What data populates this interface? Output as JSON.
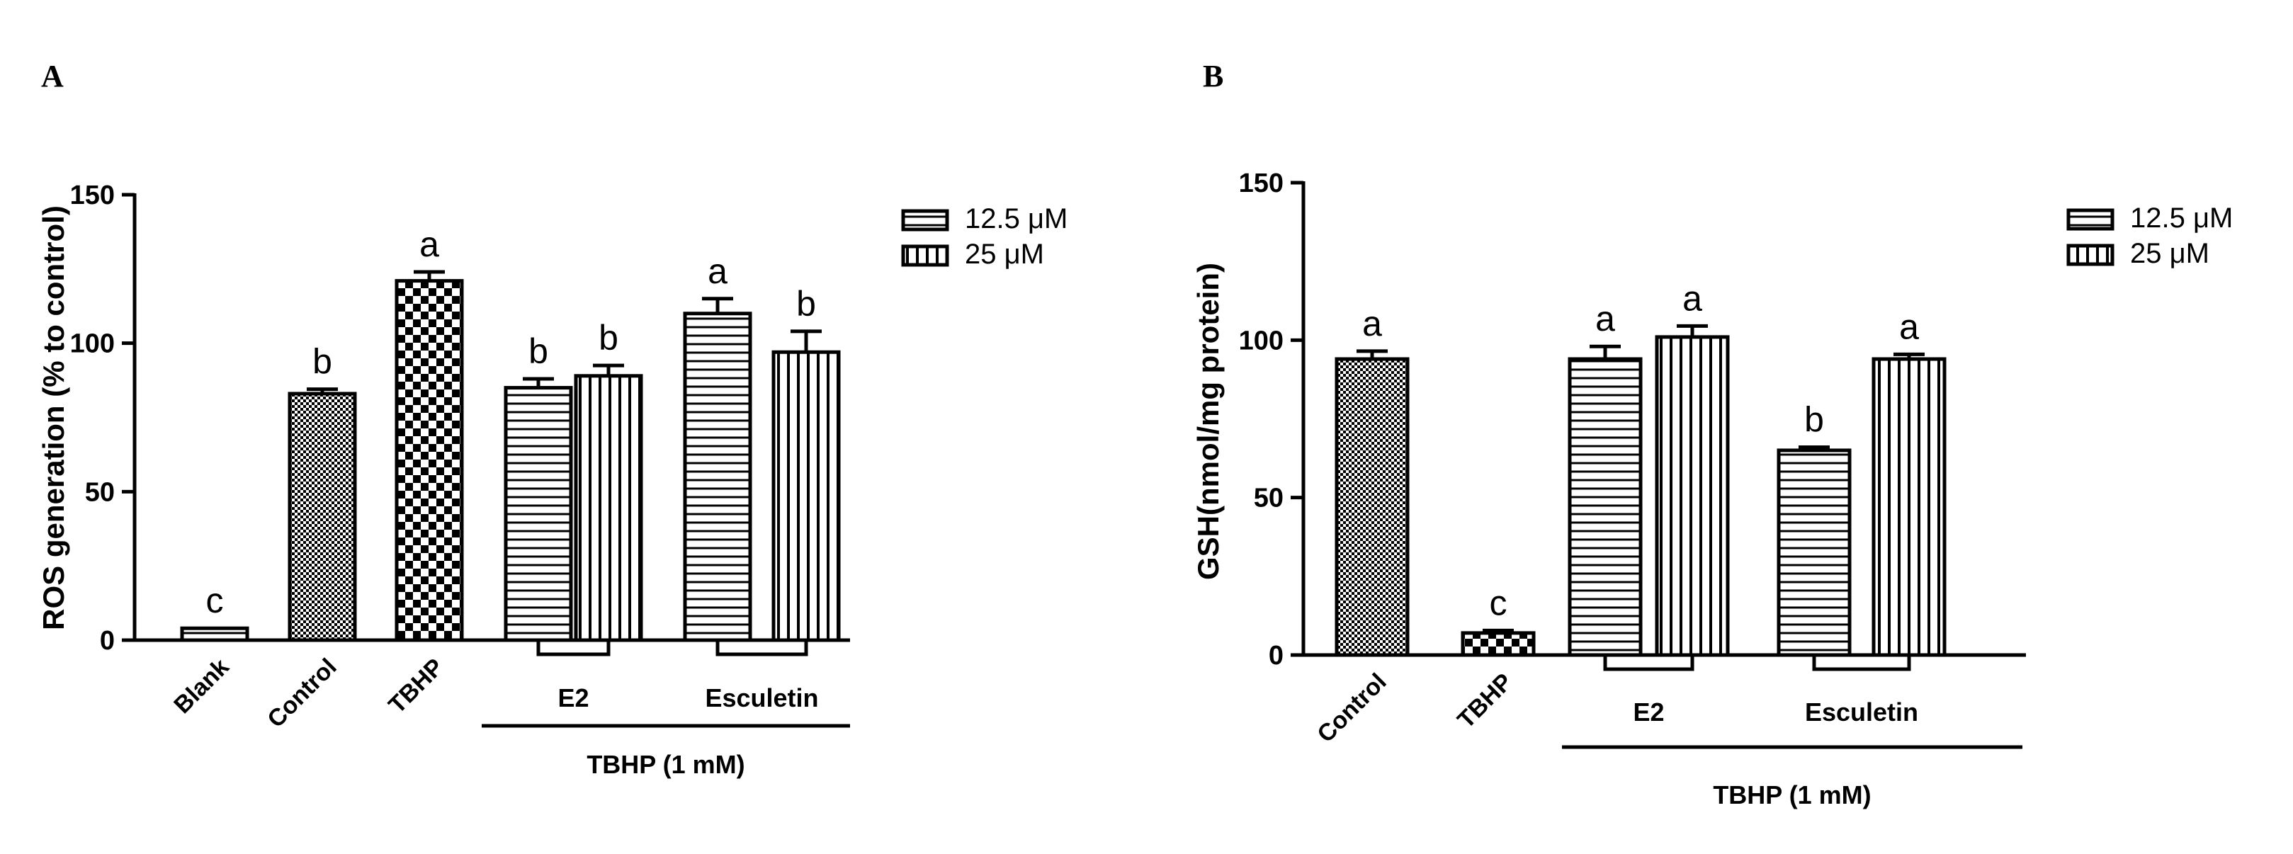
{
  "colors": {
    "ink": "#000000",
    "background": "#ffffff"
  },
  "chart_data": [
    {
      "panel": "A",
      "type": "bar",
      "ylabel": "ROS generation (% to control)",
      "ylim": [
        0,
        150
      ],
      "yticks": [
        "0",
        "50",
        "100",
        "150"
      ],
      "categories": [
        "Blank",
        "Control",
        "TBHP",
        "",
        "",
        "",
        ""
      ],
      "bars": [
        {
          "category": "Blank",
          "value": 4,
          "error": 0,
          "pattern": "horizontal-lines",
          "letter": "c"
        },
        {
          "category": "Control",
          "value": 83,
          "error": 1.5,
          "pattern": "fine-checker",
          "letter": "b"
        },
        {
          "category": "TBHP",
          "value": 121,
          "error": 3,
          "pattern": "checker",
          "letter": "a"
        },
        {
          "group": "E2",
          "series": "12.5 μM",
          "value": 85,
          "error": 3,
          "pattern": "horizontal-lines",
          "letter": "b"
        },
        {
          "group": "E2",
          "series": "25 μM",
          "value": 89,
          "error": 3.5,
          "pattern": "vertical-lines",
          "letter": "b"
        },
        {
          "group": "Esculetin",
          "series": "12.5 μM",
          "value": 110,
          "error": 5,
          "pattern": "horizontal-lines",
          "letter": "a"
        },
        {
          "group": "Esculetin",
          "series": "25 μM",
          "value": 97,
          "error": 7,
          "pattern": "vertical-lines",
          "letter": "b"
        }
      ],
      "groups": [
        "E2",
        "Esculetin"
      ],
      "treatment_label": "TBHP (1 mM)",
      "legend": [
        {
          "label": "12.5 μM",
          "pattern": "horizontal-lines"
        },
        {
          "label": "25 μM",
          "pattern": "vertical-lines"
        }
      ],
      "legend_position": "top-right"
    },
    {
      "panel": "B",
      "type": "bar",
      "ylabel": "GSH(nmol/mg protein)",
      "ylim": [
        0,
        150
      ],
      "yticks": [
        "0",
        "50",
        "100",
        "150"
      ],
      "categories": [
        "Control",
        "TBHP",
        "",
        "",
        "",
        ""
      ],
      "bars": [
        {
          "category": "Control",
          "value": 94,
          "error": 2.5,
          "pattern": "fine-checker",
          "letter": "a"
        },
        {
          "category": "TBHP",
          "value": 7,
          "error": 0.8,
          "pattern": "checker",
          "letter": "c"
        },
        {
          "group": "E2",
          "series": "12.5 μM",
          "value": 94,
          "error": 4,
          "pattern": "horizontal-lines",
          "letter": "a"
        },
        {
          "group": "E2",
          "series": "25 μM",
          "value": 101,
          "error": 3.5,
          "pattern": "vertical-lines",
          "letter": "a"
        },
        {
          "group": "Esculetin",
          "series": "12.5 μM",
          "value": 65,
          "error": 1,
          "pattern": "horizontal-lines",
          "letter": "b"
        },
        {
          "group": "Esculetin",
          "series": "25 μM",
          "value": 94,
          "error": 1.5,
          "pattern": "vertical-lines",
          "letter": "a"
        }
      ],
      "groups": [
        "E2",
        "Esculetin"
      ],
      "treatment_label": "TBHP (1 mM)",
      "legend": [
        {
          "label": "12.5 μM",
          "pattern": "horizontal-lines"
        },
        {
          "label": "25 μM",
          "pattern": "vertical-lines"
        }
      ],
      "legend_position": "top-right"
    }
  ]
}
